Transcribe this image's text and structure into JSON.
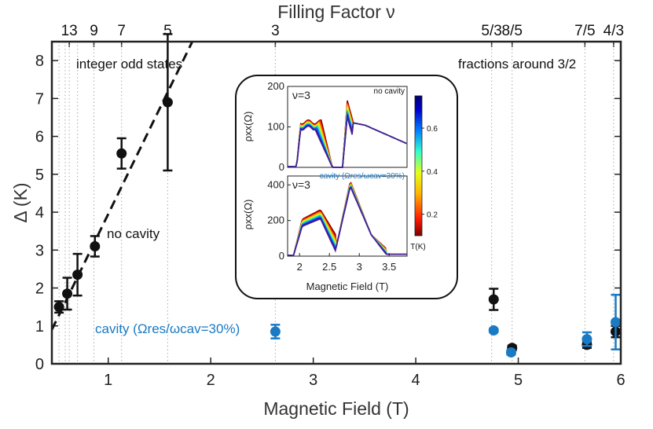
{
  "chart_data": {
    "type": "scatter",
    "title": "",
    "xlabel": "Magnetic Field (T)",
    "ylabel": "Δ (K)",
    "top_xlabel": "Filling Factor ν",
    "xlim": [
      0.45,
      6.0
    ],
    "ylim": [
      0,
      8.5
    ],
    "xticks": [
      "1",
      "2",
      "3",
      "4",
      "5",
      "6"
    ],
    "xtick_values": [
      1,
      2,
      3,
      4,
      5,
      6
    ],
    "yticks": [
      "0",
      "1",
      "2",
      "3",
      "4",
      "5",
      "6",
      "7",
      "8"
    ],
    "ytick_values": [
      0,
      1,
      2,
      3,
      4,
      5,
      6,
      7,
      8
    ],
    "top_ticks": [
      {
        "label": "13",
        "x": 0.62
      },
      {
        "label": "9",
        "x": 0.86
      },
      {
        "label": "7",
        "x": 1.13
      },
      {
        "label": "5",
        "x": 1.58
      },
      {
        "label": "3",
        "x": 2.63
      },
      {
        "label": "5/3",
        "x": 4.74
      },
      {
        "label": "8/5",
        "x": 4.94
      },
      {
        "label": "7/5",
        "x": 5.65
      },
      {
        "label": "4/3",
        "x": 5.93
      }
    ],
    "vgrid_x": [
      0.52,
      0.58,
      0.62,
      0.7,
      0.86,
      1.13,
      1.58,
      2.63,
      4.74,
      4.94,
      5.65,
      5.93
    ],
    "series": [
      {
        "name": "no cavity",
        "color": "#111111",
        "points": [
          {
            "x": 0.52,
            "y": 1.5,
            "err": 0.15
          },
          {
            "x": 0.6,
            "y": 1.85,
            "err": 0.42
          },
          {
            "x": 0.7,
            "y": 2.35,
            "err": 0.55
          },
          {
            "x": 0.87,
            "y": 3.1,
            "err": 0.27
          },
          {
            "x": 1.13,
            "y": 5.55,
            "err": 0.4
          },
          {
            "x": 1.58,
            "y": 6.9,
            "err": 1.8
          },
          {
            "x": 4.76,
            "y": 1.7,
            "err": 0.28
          },
          {
            "x": 4.94,
            "y": 0.42,
            "err": 0.06
          },
          {
            "x": 5.67,
            "y": 0.5,
            "err": 0.08
          },
          {
            "x": 5.95,
            "y": 0.85,
            "err": 0.15
          }
        ]
      },
      {
        "name": "cavity (Ωres/ωcav=30%)",
        "color": "#1a7ac4",
        "points": [
          {
            "x": 2.63,
            "y": 0.85,
            "err": 0.18
          },
          {
            "x": 4.76,
            "y": 0.88,
            "err": 0.05
          },
          {
            "x": 4.93,
            "y": 0.3,
            "err": 0.06
          },
          {
            "x": 5.67,
            "y": 0.65,
            "err": 0.18
          },
          {
            "x": 5.95,
            "y": 1.1,
            "err": 0.72
          }
        ]
      }
    ],
    "fit_line": {
      "style": "dashed",
      "from": [
        0.45,
        0.9
      ],
      "to": [
        1.82,
        8.5
      ]
    },
    "annotations": [
      "integer odd states",
      "fractions around 3/2",
      "no cavity",
      "cavity (Ωres/ωcav=30%)"
    ],
    "inset": {
      "xlabel": "Magnetic Field (T)",
      "xticks": [
        "2",
        "2.5",
        "3",
        "3.5"
      ],
      "xtick_values": [
        2,
        2.5,
        3,
        3.5
      ],
      "xlim": [
        1.8,
        3.8
      ],
      "top_panel": {
        "label": "ν=3",
        "note": "no cavity",
        "ylabel": "ρxx(Ω)",
        "yticks": [
          "0",
          "100",
          "200"
        ],
        "ytick_values": [
          0,
          100,
          200
        ],
        "ylim": [
          0,
          200
        ]
      },
      "bottom_panel": {
        "label": "ν=3",
        "note": "cavity (Ωres/ωcav=30%)",
        "ylabel": "ρxx(Ω)",
        "yticks": [
          "0",
          "200",
          "400"
        ],
        "ytick_values": [
          0,
          200,
          400
        ],
        "ylim": [
          0,
          450
        ]
      },
      "colorbar": {
        "label": "T(K)",
        "ticks": [
          "0.2",
          "0.4",
          "0.6"
        ],
        "tick_values": [
          0.2,
          0.4,
          0.6
        ],
        "range": [
          0.1,
          0.75
        ]
      }
    }
  }
}
